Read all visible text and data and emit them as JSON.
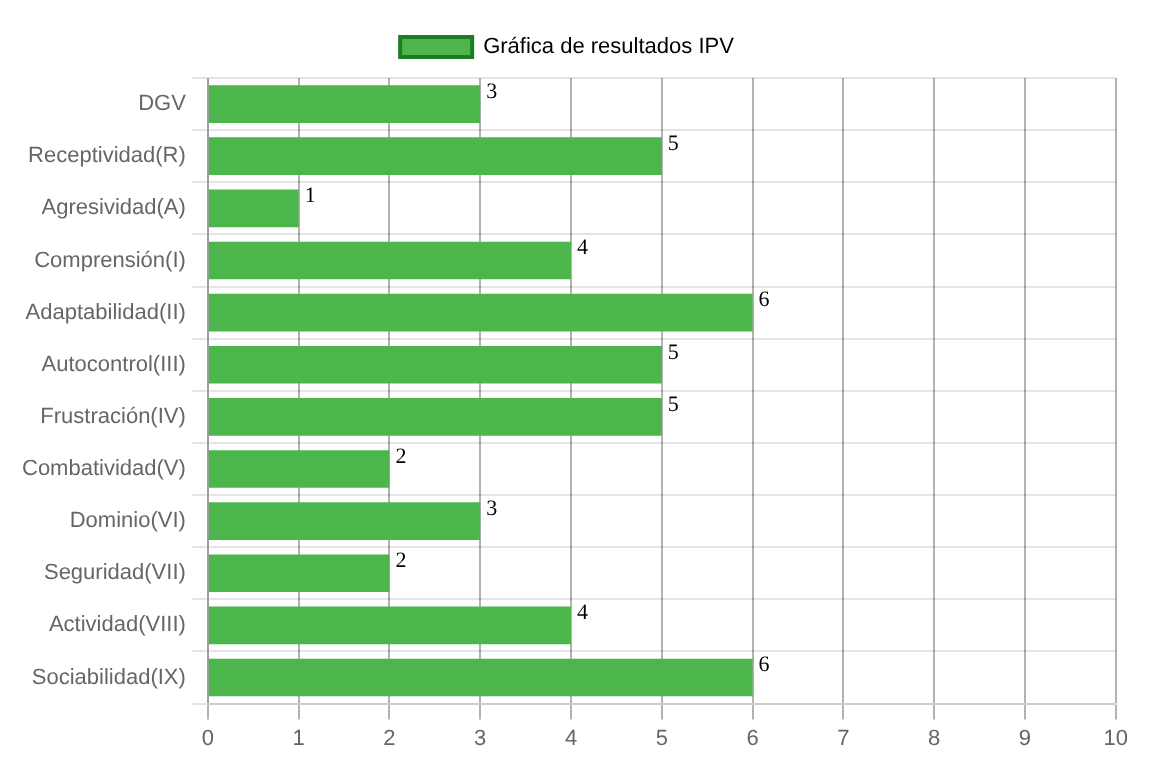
{
  "chart_data": {
    "type": "bar",
    "orientation": "horizontal",
    "categories": [
      "DGV",
      "Receptividad(R)",
      "Agresividad(A)",
      "Comprensión(I)",
      "Adaptabilidad(II)",
      "Autocontrol(III)",
      "Frustración(IV)",
      "Combatividad(V)",
      "Dominio(VI)",
      "Seguridad(VII)",
      "Actividad(VIII)",
      "Sociabilidad(IX)"
    ],
    "series": [
      {
        "name": "Gráfica de resultados IPV",
        "color": "#4cb54c",
        "values": [
          3,
          5,
          1,
          4,
          6,
          5,
          5,
          2,
          3,
          2,
          4,
          6
        ]
      }
    ],
    "xlim": [
      0,
      10
    ],
    "xticks": [
      0,
      1,
      2,
      3,
      4,
      5,
      6,
      7,
      8,
      9,
      10
    ],
    "grid": true,
    "legend": "top",
    "data_labels": true
  }
}
